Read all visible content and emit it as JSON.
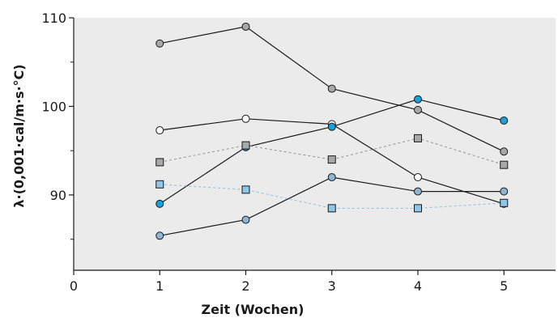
{
  "chart_data": {
    "type": "line",
    "xlabel": "Zeit (Wochen)",
    "ylabel": "λ·(0,001·cal/m·s·°C)",
    "xlim": [
      0,
      5.6
    ],
    "ylim": [
      81.5,
      110
    ],
    "x_ticks": [
      "0",
      "1",
      "2",
      "3",
      "4",
      "5"
    ],
    "y_ticks": [
      "90",
      "100",
      "110"
    ],
    "grid": false,
    "x": [
      1,
      2,
      3,
      4,
      5
    ],
    "series": [
      {
        "values": [
          107.1,
          109.0,
          102.0,
          99.6,
          94.9
        ],
        "marker": "circle",
        "fill": "#a8a8a8",
        "line": "solid"
      },
      {
        "values": [
          97.3,
          98.6,
          98.0,
          92.0,
          89.0
        ],
        "marker": "circle",
        "fill": "#ffffff",
        "line": "solid"
      },
      {
        "values": [
          89.0,
          95.4,
          97.7,
          100.8,
          98.4
        ],
        "marker": "circle",
        "fill": "#1aa0dc",
        "line": "solid"
      },
      {
        "values": [
          85.4,
          87.2,
          92.0,
          90.4,
          90.4
        ],
        "marker": "circle",
        "fill": "#8fb6d1",
        "line": "solid"
      },
      {
        "values": [
          93.7,
          95.6,
          94.0,
          96.4,
          93.4
        ],
        "marker": "square",
        "fill": "#a8a8a8",
        "line": "dotted-gray"
      },
      {
        "values": [
          91.2,
          90.6,
          88.5,
          88.5,
          89.1
        ],
        "marker": "square",
        "fill": "#8fc6e8",
        "line": "dotted-blue"
      }
    ],
    "colors": {
      "plot_background": "#ebebeb",
      "axis": "#1a1a1a",
      "solid_line": "#1a1a1a",
      "dotted_gray": "#9a9a9a",
      "dotted_blue": "#8fc6e8"
    }
  }
}
